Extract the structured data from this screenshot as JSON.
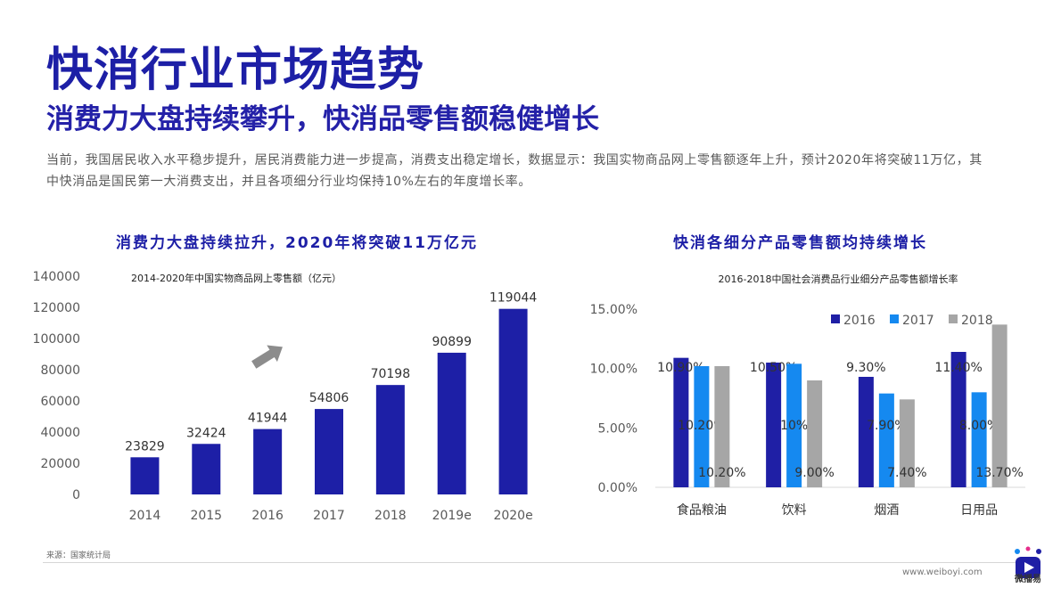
{
  "header": {
    "title": "快消行业市场趋势",
    "subtitle": "消费力大盘持续攀升，快消品零售额稳健增长",
    "intro": "当前，我国居民收入水平稳步提升，居民消费能力进一步提高，消费支出稳定增长，数据显示：我国实物商品网上零售额逐年上升，预计2020年将突破11万亿，其中快消品是国民第一大消费支出，并且各项细分行业均保持10%左右的年度增长率。"
  },
  "left": {
    "heading": "消费力大盘持续拉升，2020年将突破11万亿元"
  },
  "right": {
    "heading": "快消各细分产品零售额均持续增长"
  },
  "footer": {
    "source": "来源：国家统计局",
    "website": "www.weiboyi.com",
    "logo_text": "微播易"
  },
  "colors": {
    "brand": "#1d1fa6",
    "bar_2016": "#1f1fa5",
    "bar_2017": "#1589f0",
    "bar_2018": "#a6a6a6",
    "arrow": "#8c8c8c"
  },
  "chart_data": [
    {
      "type": "bar",
      "title": "2014-2020年中国实物商品网上零售额（亿元）",
      "categories": [
        "2014",
        "2015",
        "2016",
        "2017",
        "2018",
        "2019e",
        "2020e"
      ],
      "values": [
        23829,
        32424,
        41944,
        54806,
        70198,
        90899,
        119044
      ],
      "ylim": [
        0,
        140000
      ],
      "yticks": [
        "0",
        "20000",
        "40000",
        "60000",
        "80000",
        "100000",
        "120000",
        "140000"
      ],
      "grid": false
    },
    {
      "type": "bar",
      "title": "2016-2018中国社会消费品行业细分产品零售额增长率",
      "categories": [
        "食品粮油",
        "饮料",
        "烟酒",
        "日用品"
      ],
      "series": [
        {
          "name": "2016",
          "values": [
            10.9,
            10.5,
            9.3,
            11.4
          ],
          "labels": [
            "10.90%",
            "10.50%",
            "9.30%",
            "11.40%"
          ]
        },
        {
          "name": "2017",
          "values": [
            10.2,
            10.4,
            7.9,
            8.0
          ],
          "labels": [
            "10.20%",
            "10%",
            "7.90%",
            "8.00%"
          ]
        },
        {
          "name": "2018",
          "values": [
            10.2,
            9.0,
            7.4,
            13.7
          ],
          "labels": [
            "10.20%",
            "9.00%",
            "7.40%",
            "13.70%"
          ]
        }
      ],
      "ylim": [
        0,
        15
      ],
      "yticks": [
        "0.00%",
        "5.00%",
        "10.00%",
        "15.00%"
      ],
      "legend": "top-right",
      "grid": false
    }
  ]
}
